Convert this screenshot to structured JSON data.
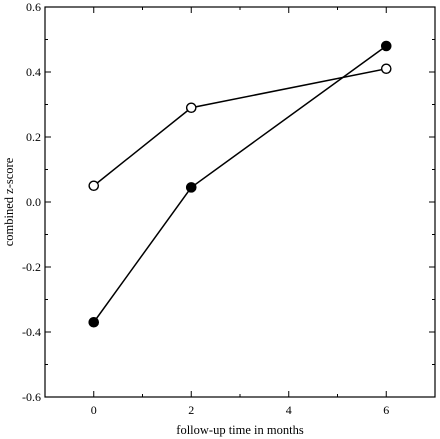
{
  "chart_data": {
    "type": "line",
    "title": "",
    "xlabel": "follow-up time in months",
    "ylabel": "combined z-score",
    "xlim": [
      -1,
      7
    ],
    "ylim": [
      -0.6,
      0.6
    ],
    "xticks": [
      0,
      2,
      4,
      6
    ],
    "xtick_labels": [
      "0",
      "2",
      "4",
      "6"
    ],
    "yticks": [
      -0.6,
      -0.4,
      -0.2,
      0.0,
      0.2,
      0.4,
      0.6
    ],
    "ytick_labels": [
      "-0.6",
      "-0.4",
      "-0.2",
      "0.0",
      "0.2",
      "0.4",
      "0.6"
    ],
    "grid": false,
    "legend": "none",
    "series": [
      {
        "marker": "open-circle",
        "color": "#000000",
        "x": [
          0,
          2,
          6
        ],
        "y": [
          0.05,
          0.29,
          0.41
        ]
      },
      {
        "marker": "filled-circle",
        "color": "#000000",
        "x": [
          0,
          2,
          6
        ],
        "y": [
          -0.37,
          0.045,
          0.48
        ]
      }
    ]
  }
}
